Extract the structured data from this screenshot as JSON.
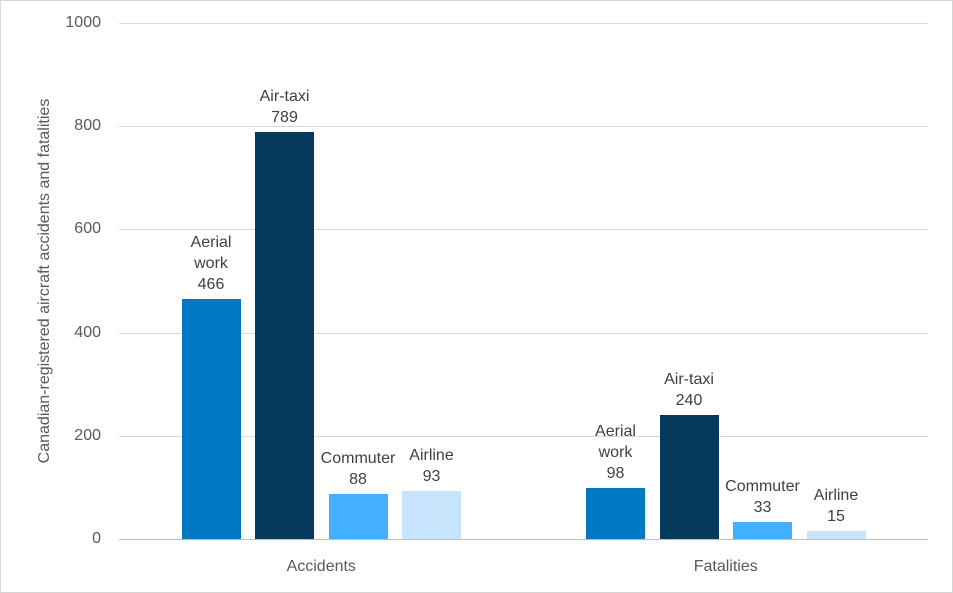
{
  "chart_data": {
    "type": "bar",
    "title": "",
    "xlabel": "",
    "ylabel": "Canadian-registered aircraft accidents and fatalities",
    "categories": [
      "Accidents",
      "Fatalities"
    ],
    "series": [
      {
        "name": "Aerial work",
        "color": "#0079C2",
        "values": [
          466,
          98
        ]
      },
      {
        "name": "Air-taxi",
        "color": "#063A5D",
        "values": [
          789,
          240
        ]
      },
      {
        "name": "Commuter",
        "color": "#45AFFF",
        "values": [
          88,
          33
        ]
      },
      {
        "name": "Airline",
        "color": "#C6E4FB",
        "values": [
          93,
          15
        ]
      }
    ],
    "y_ticks": [
      0,
      200,
      400,
      600,
      800,
      1000
    ],
    "ylim": [
      0,
      1000
    ],
    "grid": true,
    "legend": "none",
    "data_labels": "series name and value above each bar",
    "colors": {
      "gridline": "#d9d9d9",
      "axis_line": "#bfbfbf",
      "tick_text": "#595959",
      "label_text": "#404040"
    }
  }
}
